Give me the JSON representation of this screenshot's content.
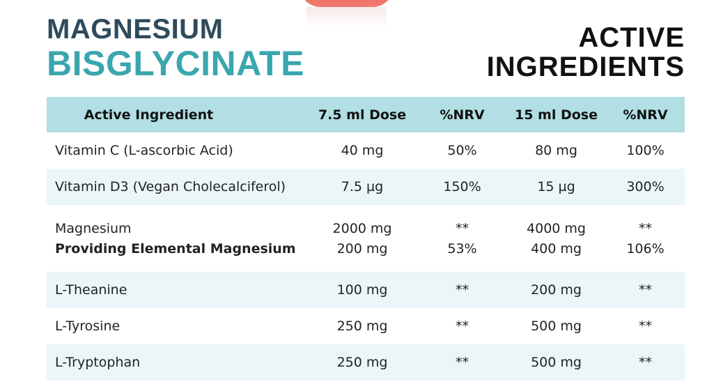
{
  "header": {
    "product_line1": "MAGNESIUM",
    "product_line2": "BISGLYCINATE",
    "heading_line1": "ACTIVE",
    "heading_line2": "INGREDIENTS"
  },
  "table": {
    "columns": [
      "Active Ingredient",
      "7.5 ml Dose",
      "%NRV",
      "15 ml Dose",
      "%NRV"
    ],
    "rows": [
      {
        "lines": [
          [
            "Vitamin C (L-ascorbic Acid)",
            "40 mg",
            "50%",
            "80 mg",
            "100%"
          ]
        ]
      },
      {
        "lines": [
          [
            "Vitamin D3 (Vegan Cholecalciferol)",
            "7.5 µg",
            "150%",
            "15 µg",
            "300%"
          ]
        ]
      },
      {
        "lines": [
          [
            "Magnesium",
            "2000 mg",
            "**",
            "4000 mg",
            "**"
          ],
          [
            "Providing Elemental Magnesium",
            "200 mg",
            "53%",
            "400 mg",
            "106%"
          ]
        ]
      },
      {
        "lines": [
          [
            "L-Theanine",
            "100 mg",
            "**",
            "200 mg",
            "**"
          ]
        ]
      },
      {
        "lines": [
          [
            "L-Tyrosine",
            "250 mg",
            "**",
            "500 mg",
            "**"
          ]
        ]
      },
      {
        "lines": [
          [
            "L-Tryptophan",
            "250 mg",
            "**",
            "500 mg",
            "**"
          ]
        ]
      }
    ]
  }
}
